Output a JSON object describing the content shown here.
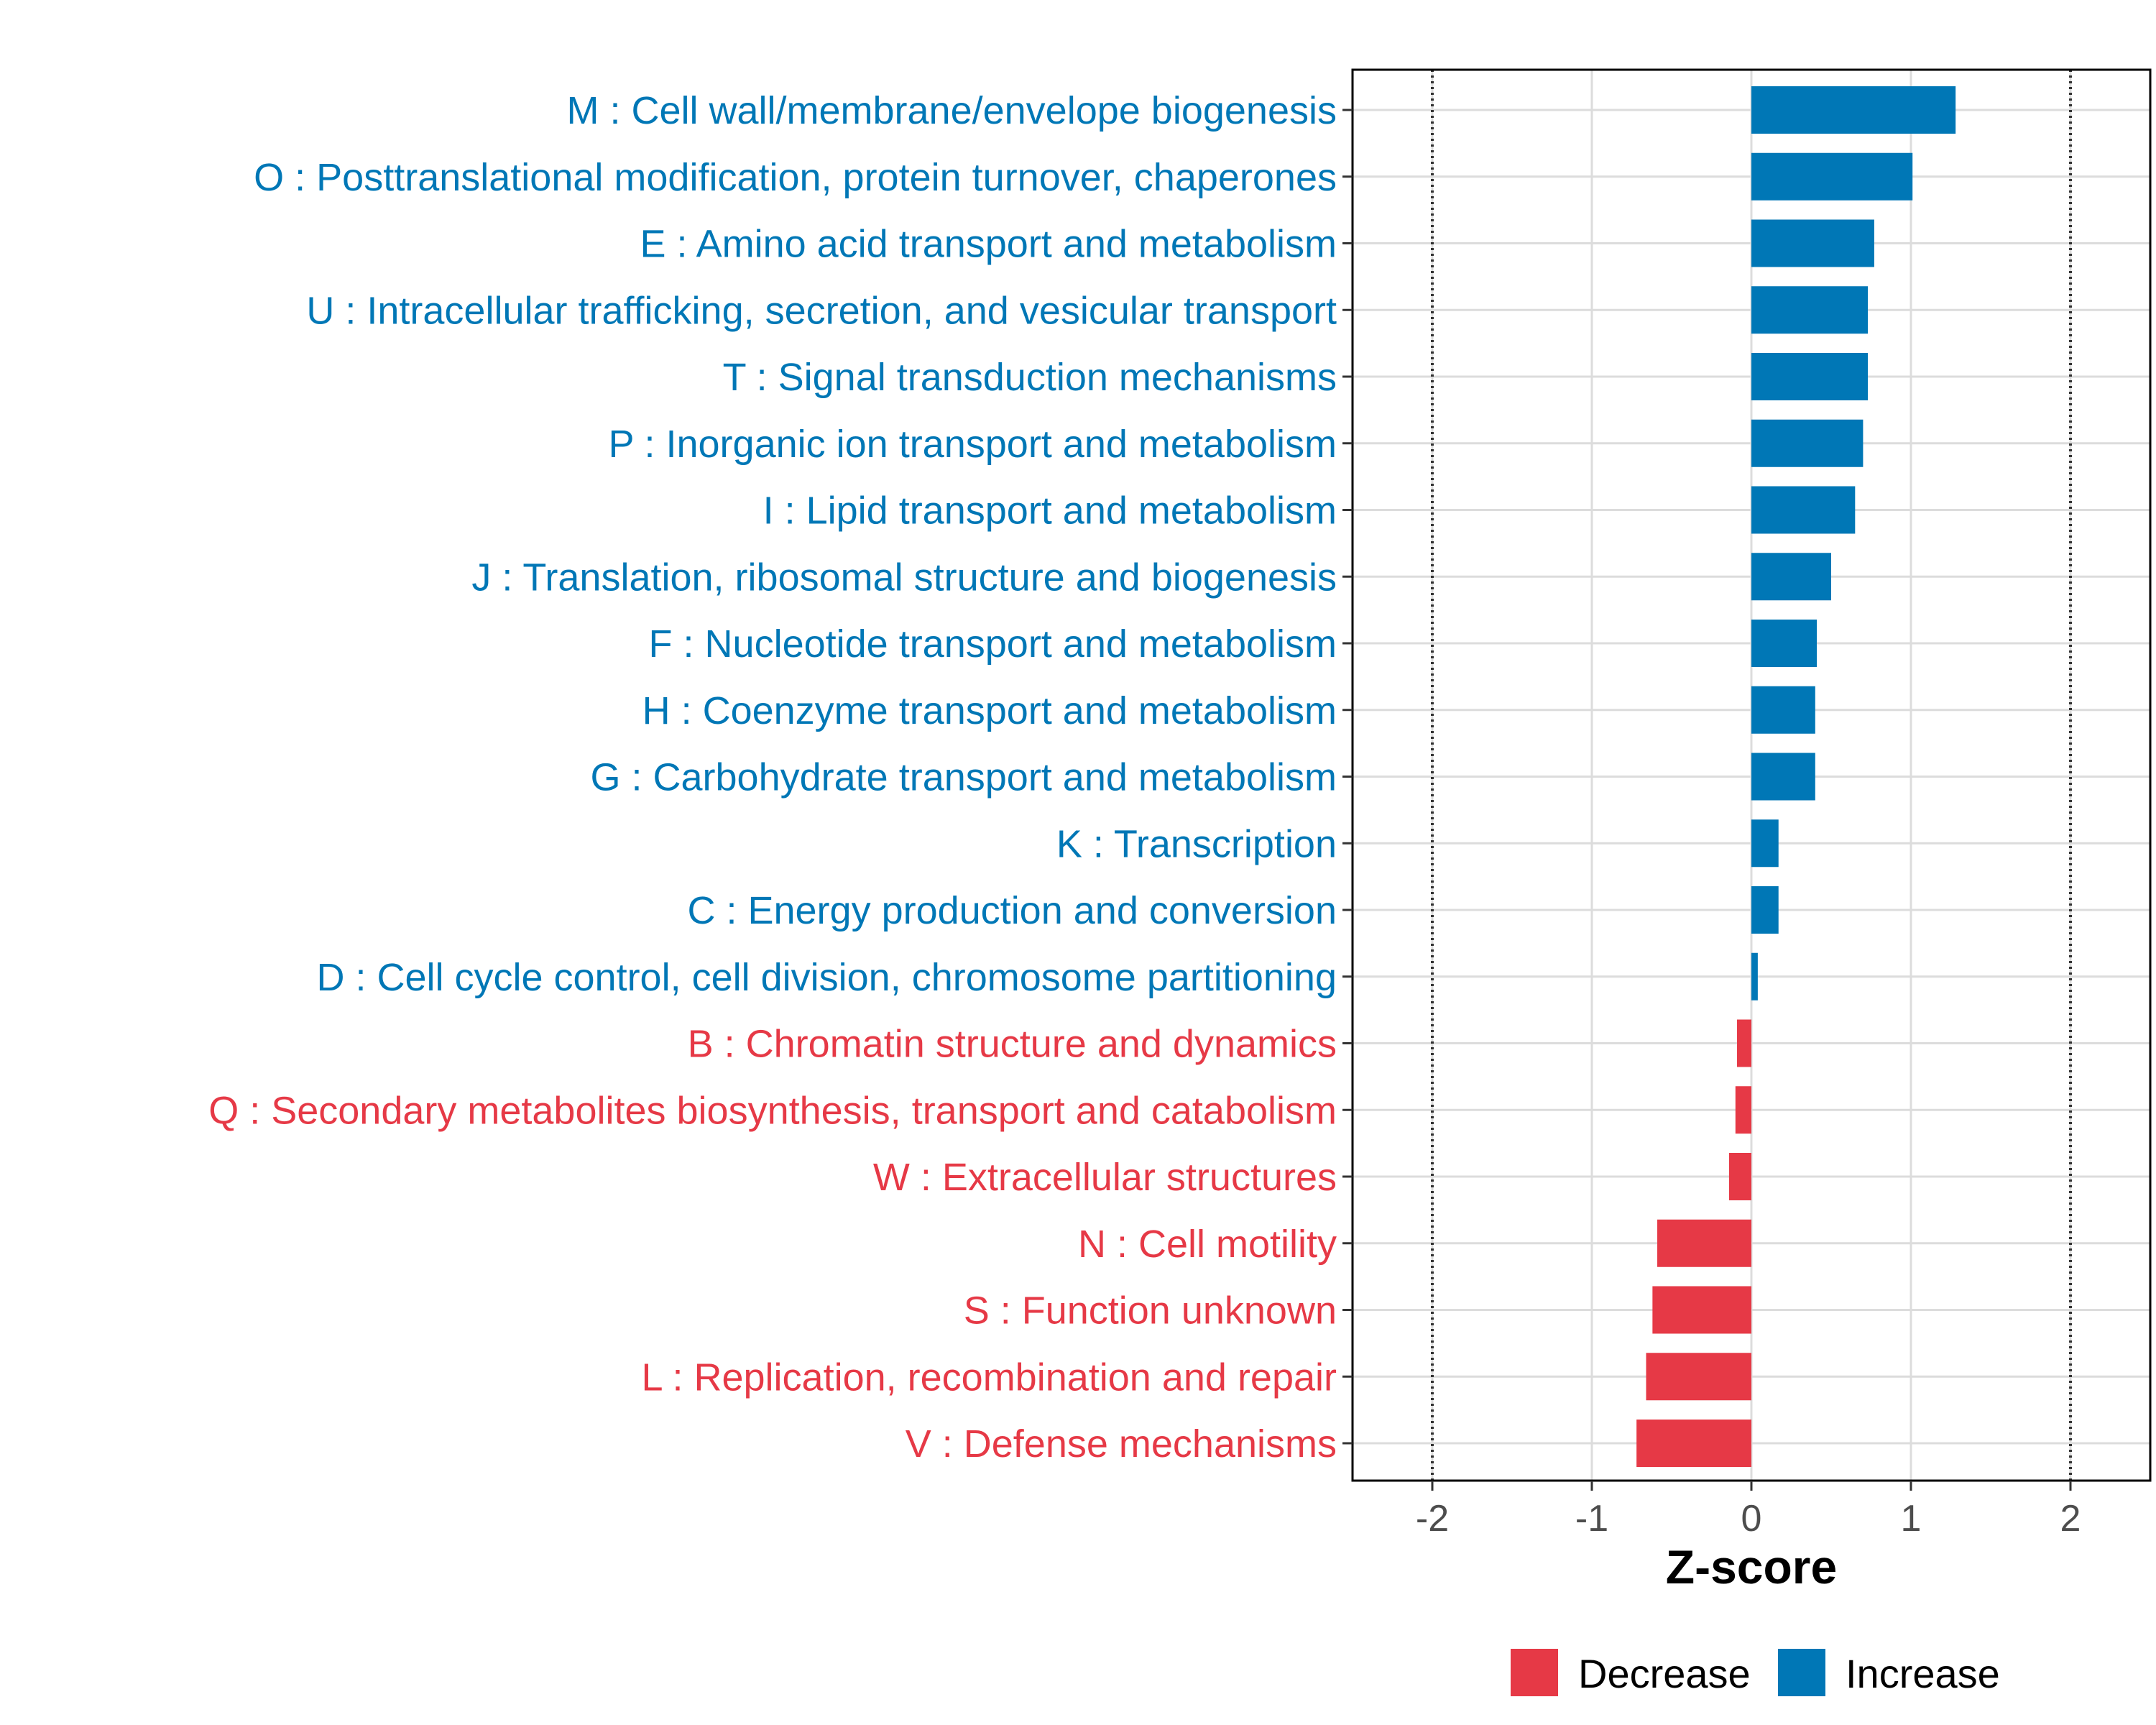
{
  "chart_data": {
    "type": "bar",
    "orientation": "horizontal",
    "xlabel": "Z-score",
    "xlim": [
      -2.5,
      2.5
    ],
    "xticks": [
      -2,
      -1,
      0,
      1,
      2
    ],
    "xtick_labels": [
      "-2",
      "-1",
      "0",
      "1",
      "2"
    ],
    "reference_lines": [
      -2,
      2
    ],
    "grid": true,
    "legend_position": "bottom",
    "legend": [
      {
        "name": "Decrease",
        "color": "#e63946"
      },
      {
        "name": "Increase",
        "color": "#0077b6"
      }
    ],
    "categories": [
      "M : Cell wall/membrane/envelope biogenesis",
      "O : Posttranslational modification, protein turnover, chaperones",
      "E : Amino acid transport and metabolism",
      "U : Intracellular trafficking, secretion, and vesicular transport",
      "T : Signal transduction mechanisms",
      "P : Inorganic ion transport and metabolism",
      "I : Lipid transport and metabolism",
      "J : Translation, ribosomal structure and biogenesis",
      "F : Nucleotide transport and metabolism",
      "H : Coenzyme transport and metabolism",
      "G : Carbohydrate transport and metabolism",
      "K : Transcription",
      "C : Energy production and conversion",
      "D : Cell cycle control, cell division, chromosome partitioning",
      "B : Chromatin structure and dynamics",
      "Q : Secondary metabolites biosynthesis, transport and catabolism",
      "W : Extracellular structures",
      "N : Cell motility",
      "S : Function unknown",
      "L : Replication, recombination and repair",
      "V : Defense mechanisms"
    ],
    "values": [
      1.28,
      1.01,
      0.77,
      0.73,
      0.73,
      0.7,
      0.65,
      0.5,
      0.41,
      0.4,
      0.4,
      0.17,
      0.17,
      0.04,
      -0.09,
      -0.1,
      -0.14,
      -0.59,
      -0.62,
      -0.66,
      -0.72
    ]
  }
}
